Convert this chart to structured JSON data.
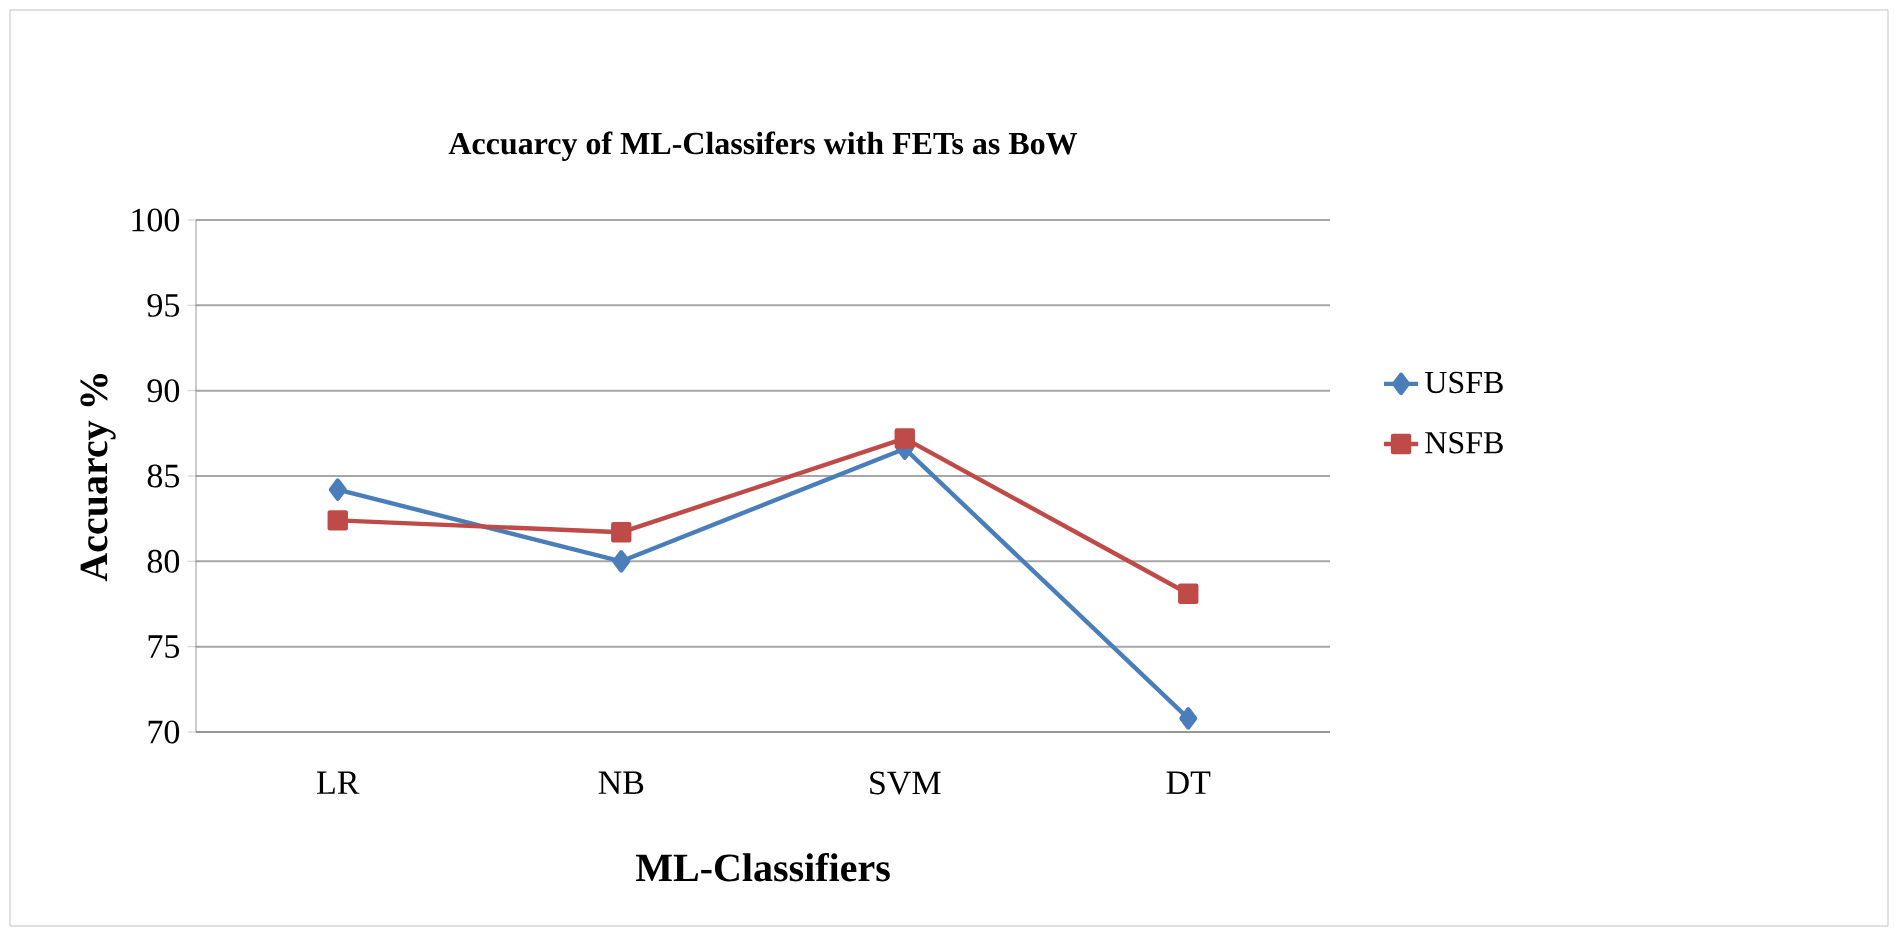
{
  "chart_data": {
    "type": "line",
    "title": "Accuarcy of ML-Classifers with FETs as BoW",
    "xlabel": "ML-Classifiers",
    "ylabel": "Accuarcy %",
    "categories": [
      "LR",
      "NB",
      "SVM",
      "DT"
    ],
    "series": [
      {
        "name": "USFB",
        "color": "#4a7ebb",
        "marker": "diamond",
        "values": [
          84.2,
          80.0,
          86.6,
          70.8
        ]
      },
      {
        "name": "NSFB",
        "color": "#be4b48",
        "marker": "square",
        "values": [
          82.4,
          81.7,
          87.2,
          78.1
        ]
      }
    ],
    "ylim": [
      70,
      100
    ],
    "yticks": [
      70,
      75,
      80,
      85,
      90,
      95,
      100
    ],
    "grid": "y",
    "legend": "right"
  }
}
